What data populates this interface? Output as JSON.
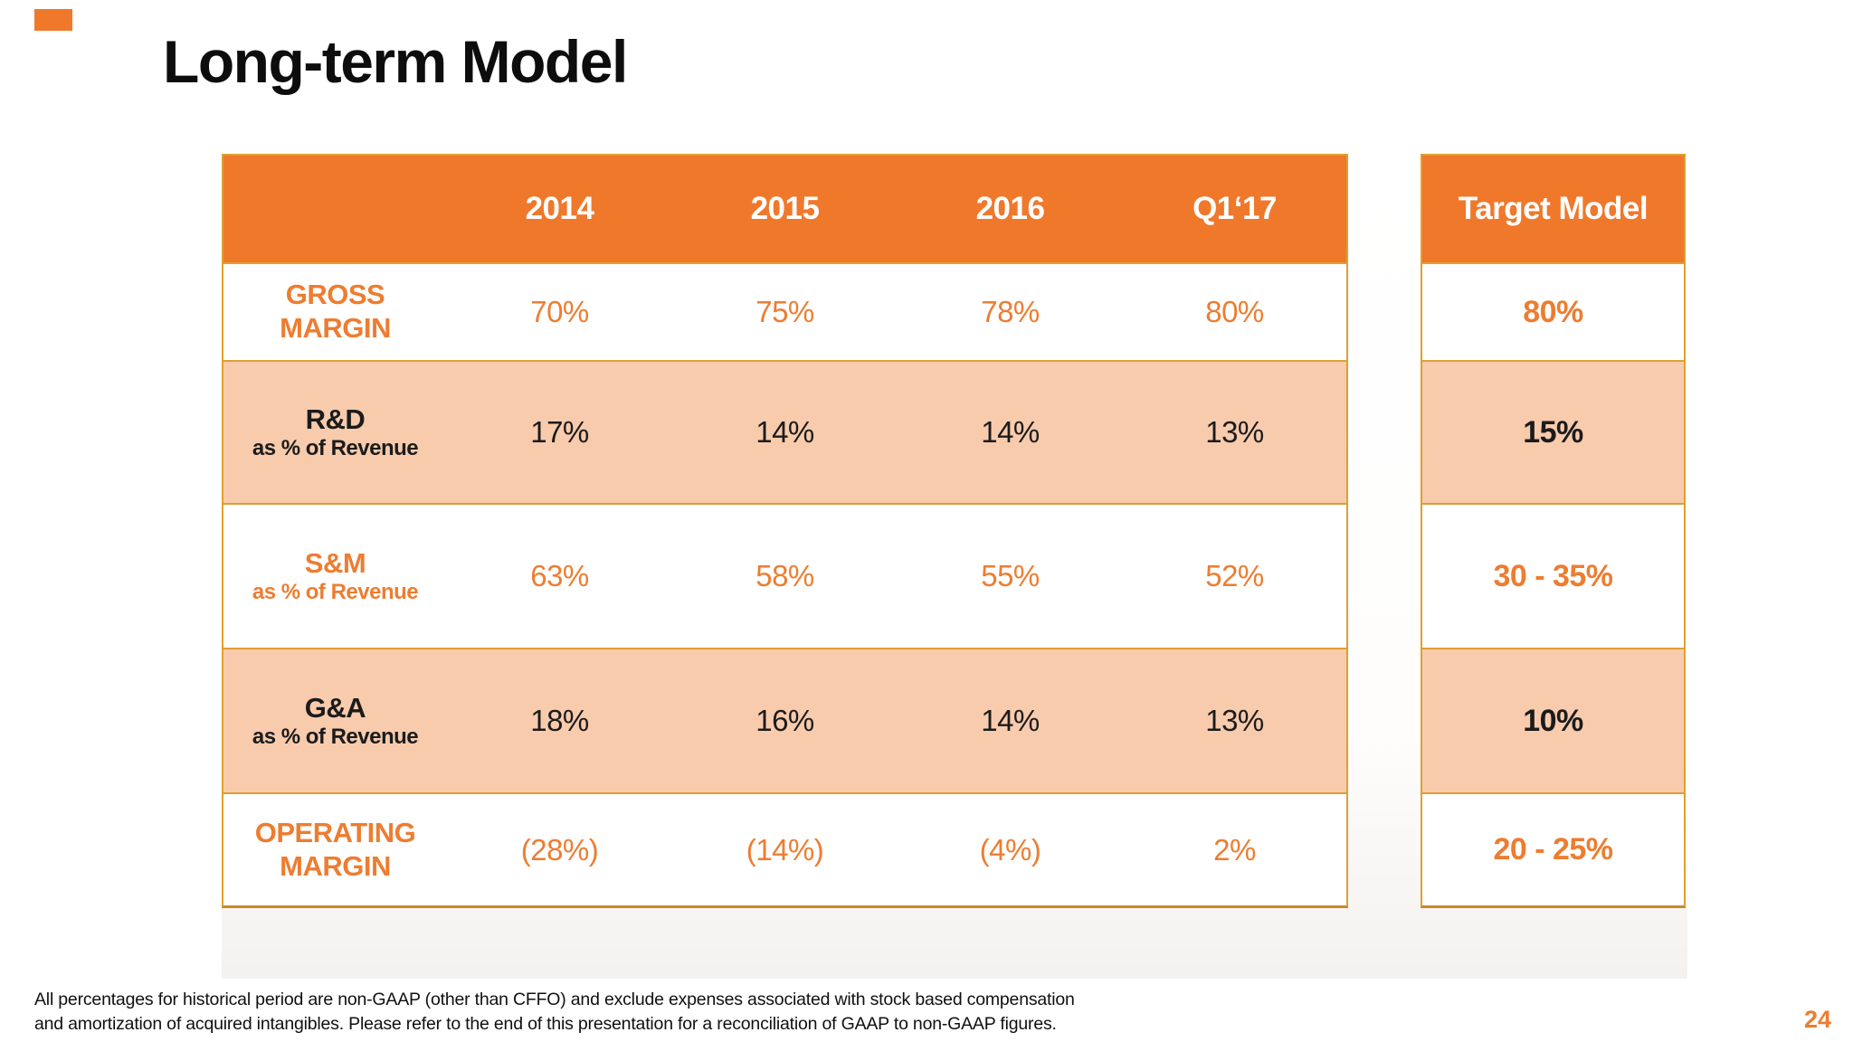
{
  "slide": {
    "title": "Long-term Model",
    "page_number": "24",
    "footnote": {
      "line1": "All percentages for historical period are non-GAAP (other than CFFO) and exclude expenses associated with stock based compensation",
      "line2": "and amortization of acquired intangibles.  Please refer to the end of this presentation for a reconciliation of GAAP to non-GAAP figures."
    }
  },
  "colors": {
    "header_orange": "#F0782B",
    "row_peach": "#F8CBAD",
    "table_border_gold": "#DFA02F",
    "orange_text": "#ED7D31",
    "black_text": "#1b1b1b"
  },
  "chart_data": {
    "type": "table",
    "title": "Long-term Model",
    "year_columns": [
      "2014",
      "2015",
      "2016",
      "Q1‘17"
    ],
    "target_header": "Target Model",
    "rows": [
      {
        "label": "GROSS MARGIN",
        "sublabel": "",
        "values": [
          "70%",
          "75%",
          "78%",
          "80%"
        ],
        "target": "80%"
      },
      {
        "label": "R&D",
        "sublabel": "as % of Revenue",
        "values": [
          "17%",
          "14%",
          "14%",
          "13%"
        ],
        "target": "15%"
      },
      {
        "label": "S&M",
        "sublabel": "as % of Revenue",
        "values": [
          "63%",
          "58%",
          "55%",
          "52%"
        ],
        "target": "30 - 35%"
      },
      {
        "label": "G&A",
        "sublabel": "as % of Revenue",
        "values": [
          "18%",
          "16%",
          "14%",
          "13%"
        ],
        "target": "10%"
      },
      {
        "label": "OPERATING MARGIN",
        "sublabel": "",
        "values": [
          "(28%)",
          "(14%)",
          "(4%)",
          "2%"
        ],
        "target": "20 - 25%"
      }
    ]
  }
}
